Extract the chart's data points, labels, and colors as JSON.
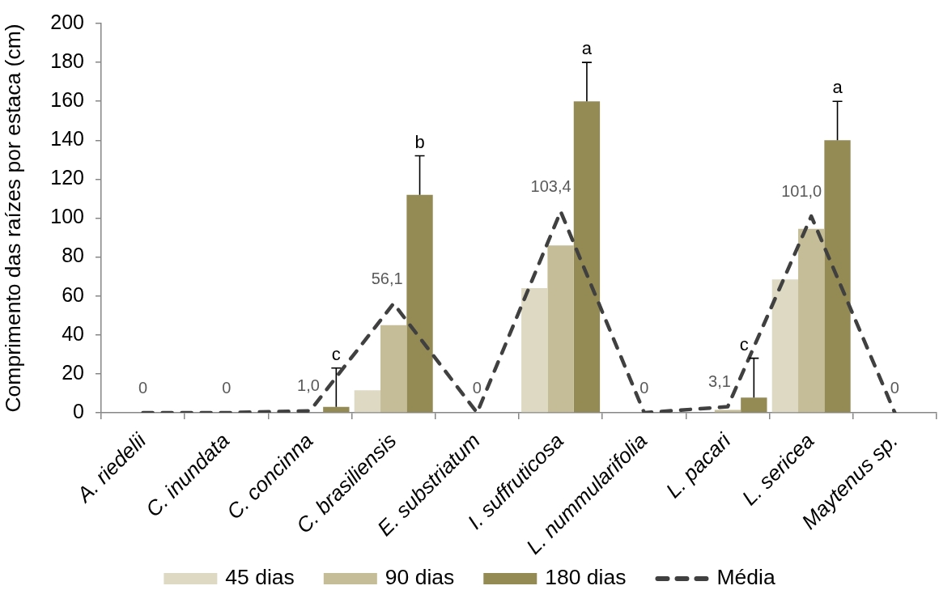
{
  "chart_data": {
    "type": "bar",
    "ylabel": "Comprimento das raízes por estaca (cm)",
    "categories": [
      "A. riedelii",
      "C. inundata",
      "C. concinna",
      "C. brasiliensis",
      "E. substriatum",
      "I. suffruticosa",
      "L. nummularifolia",
      "L. pacari",
      "L. sericea",
      "Maytenus sp."
    ],
    "series": [
      {
        "name": "45 dias",
        "color": "#ddd9c3",
        "values": [
          0,
          0,
          0,
          11.5,
          0,
          64,
          0,
          0,
          68.5,
          0
        ]
      },
      {
        "name": "90 dias",
        "color": "#c4bd97",
        "values": [
          0,
          0,
          0,
          45,
          0,
          86,
          0,
          1.5,
          94.5,
          0
        ]
      },
      {
        "name": "180 dias",
        "color": "#948a54",
        "values": [
          0,
          0,
          3,
          112,
          0,
          160,
          0,
          7.8,
          140,
          0
        ],
        "errors": [
          null,
          null,
          [
            3,
            23
          ],
          [
            112,
            132
          ],
          null,
          [
            160,
            180
          ],
          null,
          [
            7.8,
            28
          ],
          [
            140,
            160
          ],
          null
        ]
      },
      {
        "name": "Média",
        "type": "line",
        "color": "#404040",
        "line_style": "dashed",
        "marker": "none",
        "values": [
          0,
          0,
          1.0,
          56.1,
          0,
          103.4,
          0,
          3.1,
          101.0,
          0
        ],
        "value_labels": [
          "0",
          "0",
          "1,0",
          "56,1",
          "0",
          "103,4",
          "0",
          "3,1",
          "101,0",
          "0"
        ]
      }
    ],
    "ylim": [
      0,
      200
    ],
    "yticks": [
      0,
      20,
      40,
      60,
      80,
      100,
      120,
      140,
      160,
      180,
      200
    ],
    "grid": false,
    "legend": "bottom",
    "annotations": [
      "c",
      "b",
      "a",
      "c",
      "a"
    ]
  }
}
